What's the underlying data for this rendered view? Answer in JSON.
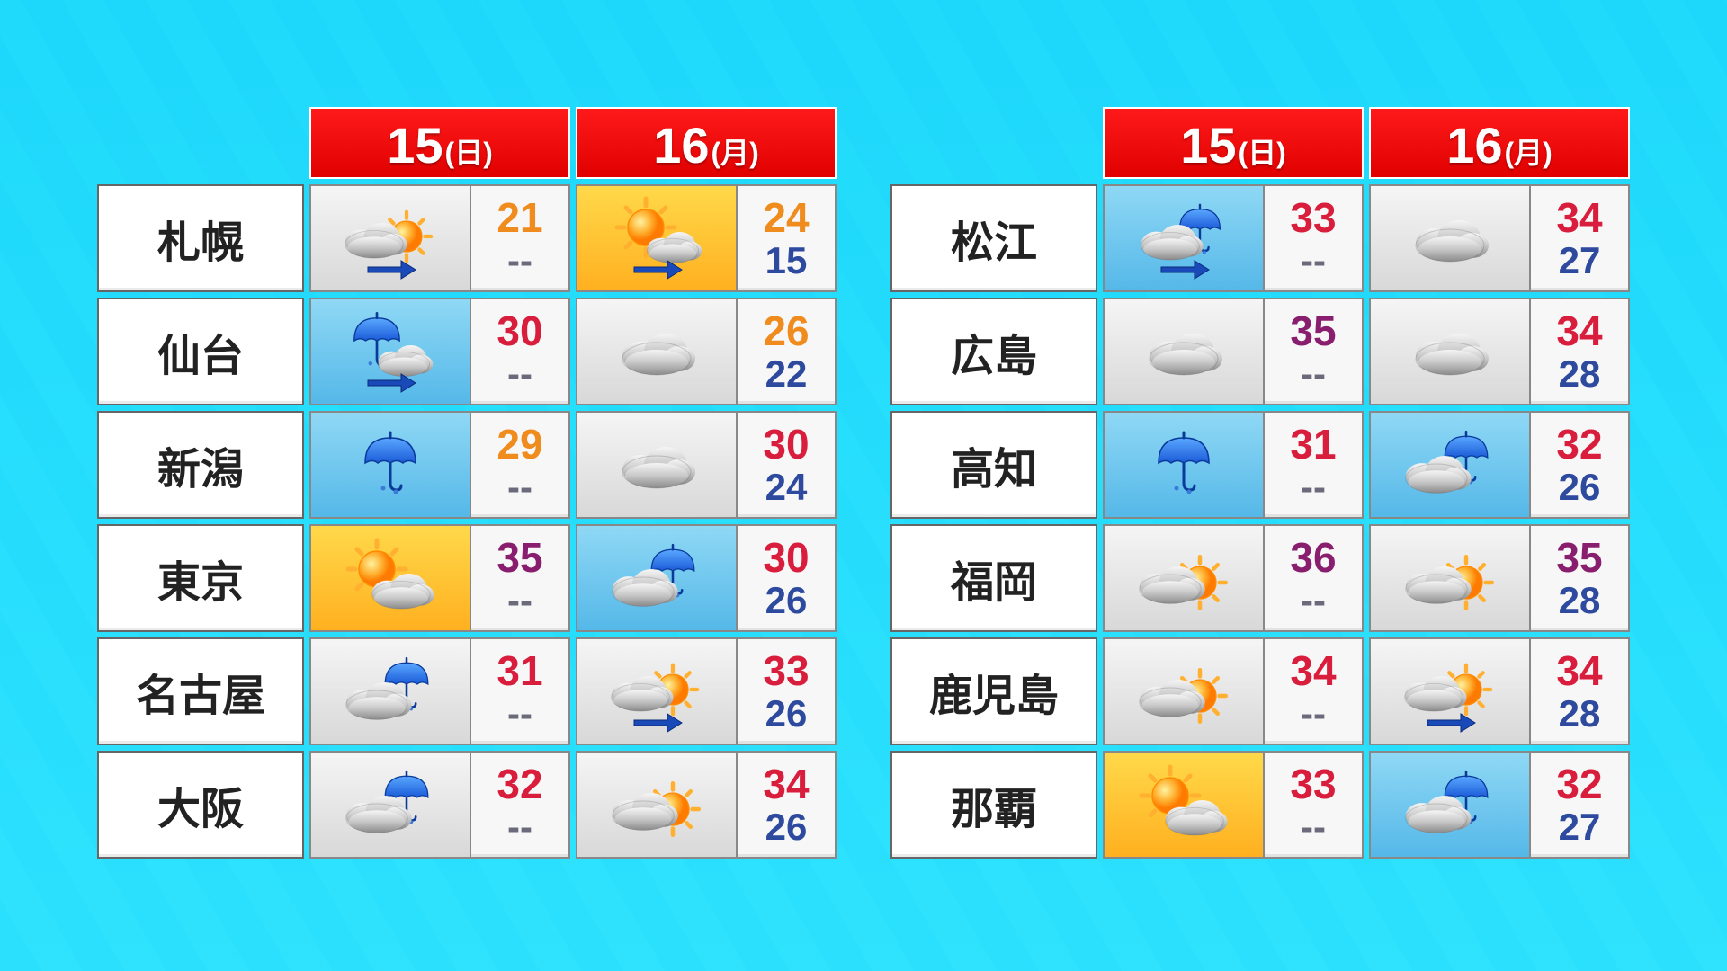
{
  "colors": {
    "hi_orange": "#f08b1e",
    "hi_red": "#d81e3c",
    "hi_purple": "#8a1e6e",
    "lo_blue": "#2e4a9e",
    "lo_gray": "#6a6a7a"
  },
  "dates": [
    {
      "num": "15",
      "day": "(日)"
    },
    {
      "num": "16",
      "day": "(月)"
    }
  ],
  "left": [
    {
      "city": "札幌",
      "d": [
        {
          "icon": "cloud-sun-arrow",
          "bg": "gray",
          "hi": "21",
          "hic": "orange",
          "lo": "--",
          "loc": "gray"
        },
        {
          "icon": "sun-cloud-arrow",
          "bg": "yellow",
          "hi": "24",
          "hic": "orange",
          "lo": "15",
          "loc": "blue"
        }
      ]
    },
    {
      "city": "仙台",
      "d": [
        {
          "icon": "umbrella-cloud-arrow",
          "bg": "blue",
          "hi": "30",
          "hic": "red",
          "lo": "--",
          "loc": "gray"
        },
        {
          "icon": "cloud",
          "bg": "gray",
          "hi": "26",
          "hic": "orange",
          "lo": "22",
          "loc": "blue"
        }
      ]
    },
    {
      "city": "新潟",
      "d": [
        {
          "icon": "umbrella",
          "bg": "blue",
          "hi": "29",
          "hic": "orange",
          "lo": "--",
          "loc": "gray"
        },
        {
          "icon": "cloud",
          "bg": "gray",
          "hi": "30",
          "hic": "red",
          "lo": "24",
          "loc": "blue"
        }
      ]
    },
    {
      "city": "東京",
      "d": [
        {
          "icon": "sun-cloud",
          "bg": "yellow",
          "hi": "35",
          "hic": "purple",
          "lo": "--",
          "loc": "gray"
        },
        {
          "icon": "cloud-umbrella",
          "bg": "blue",
          "hi": "30",
          "hic": "red",
          "lo": "26",
          "loc": "blue"
        }
      ]
    },
    {
      "city": "名古屋",
      "d": [
        {
          "icon": "cloud-umbrella",
          "bg": "gray",
          "hi": "31",
          "hic": "red",
          "lo": "--",
          "loc": "gray"
        },
        {
          "icon": "cloud-sun-arrow",
          "bg": "gray",
          "hi": "33",
          "hic": "red",
          "lo": "26",
          "loc": "blue"
        }
      ]
    },
    {
      "city": "大阪",
      "d": [
        {
          "icon": "cloud-umbrella",
          "bg": "gray",
          "hi": "32",
          "hic": "red",
          "lo": "--",
          "loc": "gray"
        },
        {
          "icon": "cloud-sun",
          "bg": "gray",
          "hi": "34",
          "hic": "red",
          "lo": "26",
          "loc": "blue"
        }
      ]
    }
  ],
  "right": [
    {
      "city": "松江",
      "d": [
        {
          "icon": "cloud-umbrella-arrow",
          "bg": "blue",
          "hi": "33",
          "hic": "red",
          "lo": "--",
          "loc": "gray"
        },
        {
          "icon": "cloud",
          "bg": "gray",
          "hi": "34",
          "hic": "red",
          "lo": "27",
          "loc": "blue"
        }
      ]
    },
    {
      "city": "広島",
      "d": [
        {
          "icon": "cloud",
          "bg": "gray",
          "hi": "35",
          "hic": "purple",
          "lo": "--",
          "loc": "gray"
        },
        {
          "icon": "cloud",
          "bg": "gray",
          "hi": "34",
          "hic": "red",
          "lo": "28",
          "loc": "blue"
        }
      ]
    },
    {
      "city": "高知",
      "d": [
        {
          "icon": "umbrella",
          "bg": "blue",
          "hi": "31",
          "hic": "red",
          "lo": "--",
          "loc": "gray"
        },
        {
          "icon": "cloud-umbrella",
          "bg": "blue",
          "hi": "32",
          "hic": "red",
          "lo": "26",
          "loc": "blue"
        }
      ]
    },
    {
      "city": "福岡",
      "d": [
        {
          "icon": "cloud-sun",
          "bg": "gray",
          "hi": "36",
          "hic": "purple",
          "lo": "--",
          "loc": "gray"
        },
        {
          "icon": "cloud-sun",
          "bg": "gray",
          "hi": "35",
          "hic": "purple",
          "lo": "28",
          "loc": "blue"
        }
      ]
    },
    {
      "city": "鹿児島",
      "d": [
        {
          "icon": "cloud-sun",
          "bg": "gray",
          "hi": "34",
          "hic": "red",
          "lo": "--",
          "loc": "gray"
        },
        {
          "icon": "cloud-sun-arrow",
          "bg": "gray",
          "hi": "34",
          "hic": "red",
          "lo": "28",
          "loc": "blue"
        }
      ]
    },
    {
      "city": "那覇",
      "d": [
        {
          "icon": "sun-cloud",
          "bg": "yellow",
          "hi": "33",
          "hic": "red",
          "lo": "--",
          "loc": "gray"
        },
        {
          "icon": "cloud-umbrella",
          "bg": "blue",
          "hi": "32",
          "hic": "red",
          "lo": "27",
          "loc": "blue"
        }
      ]
    }
  ]
}
